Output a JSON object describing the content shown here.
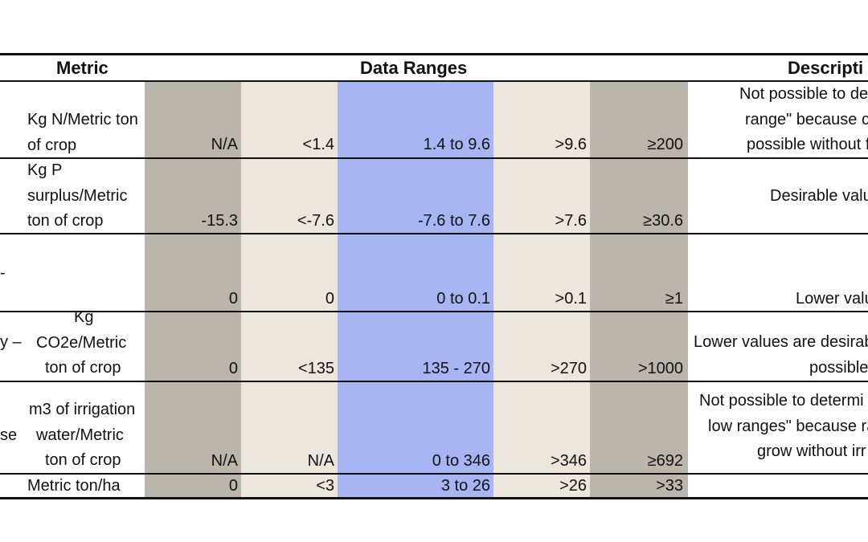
{
  "table": {
    "headers": {
      "metric": "Metric",
      "data_ranges": "Data Ranges",
      "description": "Descripti"
    },
    "column_fills": {
      "na": "#bab6ad",
      "low": "#ede6df",
      "desirable": "#a7b6f2",
      "high": "#ede6df",
      "very_high": "#bab6ad"
    },
    "rows": [
      {
        "label_fragment": "",
        "unit_lines": [
          "Kg N/Metric ton",
          "of crop"
        ],
        "values": [
          "N/A",
          "<1.4",
          "1.4 to 9.6",
          ">9.6",
          "≥200"
        ],
        "description_lines": [
          "Not possible to det",
          "range\" because c",
          "possible without f"
        ]
      },
      {
        "label_fragment": "",
        "unit_lines": [
          "Kg P",
          "surplus/Metric",
          "ton of crop"
        ],
        "values": [
          "-15.3",
          "<-7.6",
          "-7.6 to 7.6",
          ">7.6",
          "≥30.6"
        ],
        "description_lines": [
          "Desirable valu"
        ]
      },
      {
        "label_fragment": "-",
        "unit_lines": [],
        "values": [
          "0",
          "0",
          "0 to 0.1",
          ">0.1",
          "≥1"
        ],
        "description_lines": [
          "Lower valu"
        ]
      },
      {
        "label_fragment": "y –",
        "unit_lines": [
          "Kg",
          "CO2e/Metric",
          "ton of crop"
        ],
        "values": [
          "0",
          "<135",
          "135 - 270",
          ">270",
          ">1000"
        ],
        "description_lines": [
          "Lower values are desirab",
          "possible"
        ]
      },
      {
        "label_fragment": "se",
        "unit_lines": [
          "m3 of irrigation",
          "water/Metric",
          "ton of crop"
        ],
        "values": [
          "N/A",
          "N/A",
          "0 to 346",
          ">346",
          "≥692"
        ],
        "description_lines": [
          "Not possible to determi",
          "low ranges\" because ra",
          "grow without irr"
        ]
      },
      {
        "label_fragment": "",
        "unit_lines": [
          "Metric ton/ha"
        ],
        "values": [
          "0",
          "<3",
          "3 to 26",
          ">26",
          ">33"
        ],
        "description_lines": []
      }
    ]
  }
}
